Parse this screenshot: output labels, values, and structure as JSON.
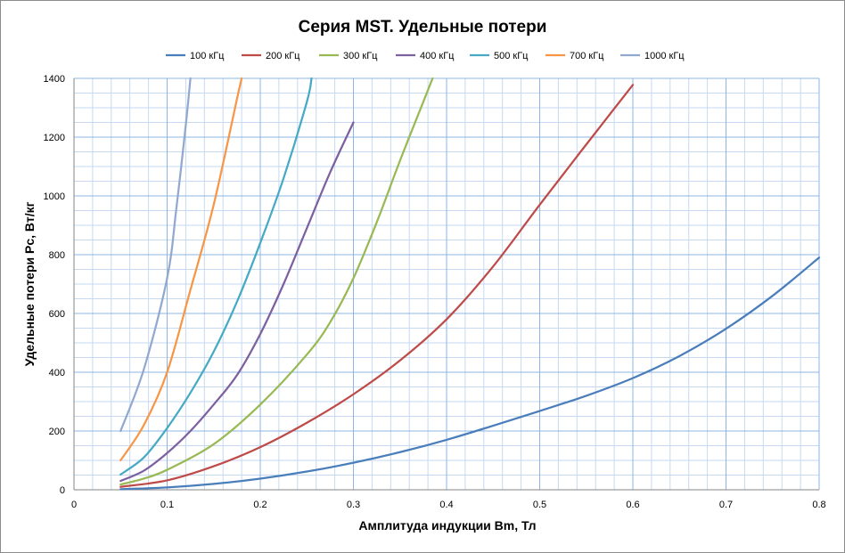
{
  "chart_data": {
    "type": "line",
    "title": "Серия MST. Удельные потери",
    "xlabel": "Амплитуда индукции Bm, Тл",
    "ylabel": "Удельные потери Pc, Вт/кг",
    "xlim": [
      0,
      0.8
    ],
    "ylim": [
      0,
      1400
    ],
    "x_ticks": [
      "0",
      "0.1",
      "0.2",
      "0.3",
      "0.4",
      "0.5",
      "0.6",
      "0.7",
      "0.8"
    ],
    "y_ticks": [
      "0",
      "200",
      "400",
      "600",
      "800",
      "1000",
      "1200",
      "1400"
    ],
    "grid": true,
    "legend_position": "top",
    "series": [
      {
        "name": "100 кГц",
        "color": "#4a7ebb",
        "points": [
          [
            0.05,
            2
          ],
          [
            0.1,
            8
          ],
          [
            0.15,
            20
          ],
          [
            0.2,
            38
          ],
          [
            0.25,
            62
          ],
          [
            0.3,
            92
          ],
          [
            0.35,
            128
          ],
          [
            0.4,
            170
          ],
          [
            0.45,
            218
          ],
          [
            0.5,
            268
          ],
          [
            0.55,
            320
          ],
          [
            0.6,
            380
          ],
          [
            0.65,
            455
          ],
          [
            0.7,
            548
          ],
          [
            0.75,
            660
          ],
          [
            0.8,
            790
          ]
        ]
      },
      {
        "name": "200 кГц",
        "color": "#be4b48",
        "points": [
          [
            0.05,
            10
          ],
          [
            0.1,
            32
          ],
          [
            0.15,
            80
          ],
          [
            0.2,
            145
          ],
          [
            0.25,
            228
          ],
          [
            0.3,
            325
          ],
          [
            0.35,
            440
          ],
          [
            0.4,
            580
          ],
          [
            0.45,
            760
          ],
          [
            0.5,
            970
          ],
          [
            0.55,
            1175
          ],
          [
            0.6,
            1378
          ]
        ]
      },
      {
        "name": "300 кГц",
        "color": "#98b954",
        "points": [
          [
            0.05,
            18
          ],
          [
            0.075,
            38
          ],
          [
            0.1,
            68
          ],
          [
            0.15,
            155
          ],
          [
            0.2,
            290
          ],
          [
            0.25,
            460
          ],
          [
            0.275,
            570
          ],
          [
            0.3,
            720
          ],
          [
            0.325,
            910
          ],
          [
            0.35,
            1120
          ],
          [
            0.375,
            1320
          ],
          [
            0.385,
            1400
          ]
        ]
      },
      {
        "name": "400 кГц",
        "color": "#7d60a0",
        "points": [
          [
            0.05,
            30
          ],
          [
            0.075,
            65
          ],
          [
            0.1,
            125
          ],
          [
            0.125,
            200
          ],
          [
            0.15,
            290
          ],
          [
            0.175,
            390
          ],
          [
            0.2,
            530
          ],
          [
            0.225,
            700
          ],
          [
            0.25,
            890
          ],
          [
            0.275,
            1080
          ],
          [
            0.3,
            1250
          ]
        ]
      },
      {
        "name": "500 кГц",
        "color": "#46aac5",
        "points": [
          [
            0.05,
            52
          ],
          [
            0.075,
            110
          ],
          [
            0.1,
            210
          ],
          [
            0.125,
            330
          ],
          [
            0.15,
            470
          ],
          [
            0.175,
            640
          ],
          [
            0.2,
            840
          ],
          [
            0.225,
            1060
          ],
          [
            0.25,
            1320
          ],
          [
            0.255,
            1400
          ]
        ]
      },
      {
        "name": "700 кГц",
        "color": "#f79646",
        "points": [
          [
            0.05,
            100
          ],
          [
            0.075,
            220
          ],
          [
            0.1,
            400
          ],
          [
            0.125,
            680
          ],
          [
            0.15,
            970
          ],
          [
            0.175,
            1330
          ],
          [
            0.18,
            1400
          ]
        ]
      },
      {
        "name": "1000 кГц",
        "color": "#92a9cf",
        "points": [
          [
            0.05,
            200
          ],
          [
            0.075,
            410
          ],
          [
            0.1,
            720
          ],
          [
            0.11,
            960
          ],
          [
            0.12,
            1240
          ],
          [
            0.125,
            1400
          ]
        ]
      }
    ]
  }
}
